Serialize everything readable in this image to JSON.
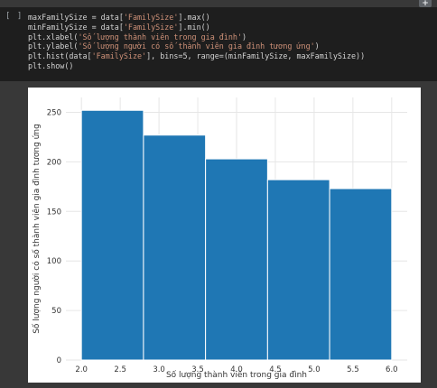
{
  "cell": {
    "run_indicator": "[ ]",
    "add_button": "+",
    "code_lines": [
      [
        {
          "t": "maxFamilySize = data[",
          "c": "k"
        },
        {
          "t": "'FamilySize'",
          "c": "s"
        },
        {
          "t": "].max()",
          "c": "k"
        }
      ],
      [
        {
          "t": "minFamilySize = data[",
          "c": "k"
        },
        {
          "t": "'FamilySize'",
          "c": "s"
        },
        {
          "t": "].min()",
          "c": "k"
        }
      ],
      [
        {
          "t": "plt.xlabel(",
          "c": "k"
        },
        {
          "t": "'Số lượng thành viên trong gia đình'",
          "c": "s"
        },
        {
          "t": ")",
          "c": "k"
        }
      ],
      [
        {
          "t": "plt.ylabel(",
          "c": "k"
        },
        {
          "t": "'Số lượng người có số thành viên gia đình tương ứng'",
          "c": "s"
        },
        {
          "t": ")",
          "c": "k"
        }
      ],
      [
        {
          "t": "plt.hist(data[",
          "c": "k"
        },
        {
          "t": "'FamilySize'",
          "c": "s"
        },
        {
          "t": "], bins=5, range=(minFamilySize, maxFamilySize))",
          "c": "k"
        }
      ],
      [
        {
          "t": "plt.show()",
          "c": "k"
        }
      ]
    ]
  },
  "chart_data": {
    "type": "bar",
    "histogram": true,
    "bin_edges": [
      2.0,
      2.8,
      3.6,
      4.4,
      5.2,
      6.0
    ],
    "values": [
      252,
      227,
      203,
      182,
      173
    ],
    "color": "#1f77b4",
    "xlabel": "Số lượng thành viên trong gia đình",
    "ylabel": "Số lượng người có số thành viên gia đình tương ứng",
    "xlim": [
      1.8,
      6.2
    ],
    "ylim": [
      0,
      265
    ],
    "xticks": [
      2.0,
      2.5,
      3.0,
      3.5,
      4.0,
      4.5,
      5.0,
      5.5,
      6.0
    ],
    "xtick_labels": [
      "2.0",
      "2.5",
      "3.0",
      "3.5",
      "4.0",
      "4.5",
      "5.0",
      "5.5",
      "6.0"
    ],
    "yticks": [
      0,
      50,
      100,
      150,
      200,
      250
    ],
    "ytick_labels": [
      "0",
      "50",
      "100",
      "150",
      "200",
      "250"
    ],
    "grid": true
  }
}
